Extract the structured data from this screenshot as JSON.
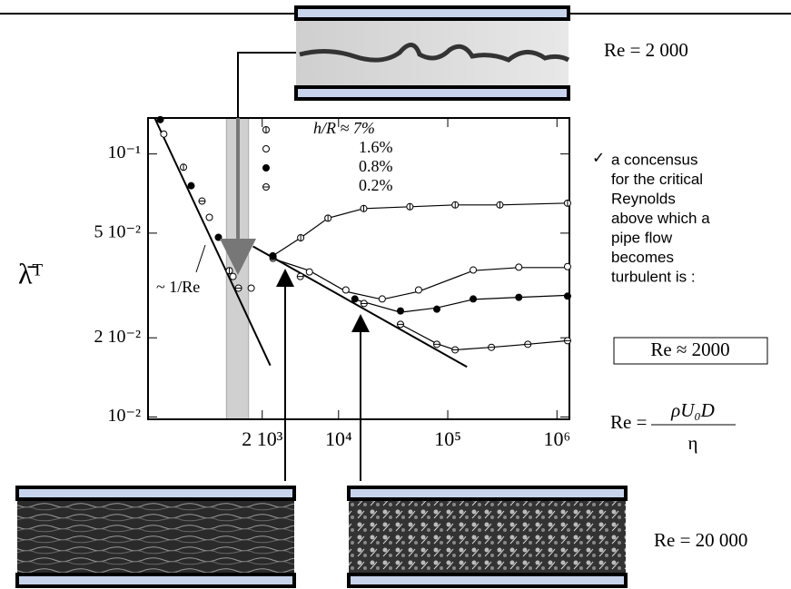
{
  "chart_data": {
    "type": "scatter",
    "y_label": "λ̄ᵀ",
    "xscale": "log",
    "yscale": "log",
    "xlim": [
      180,
      1300000
    ],
    "ylim": [
      0.0098,
      0.137
    ],
    "xticks": [
      {
        "value": 2000,
        "label": "2 10³"
      },
      {
        "value": 10000,
        "label": "10⁴"
      },
      {
        "value": 100000,
        "label": "10⁵"
      },
      {
        "value": 1000000,
        "label": "10⁶"
      }
    ],
    "yticks": [
      {
        "value": 0.1,
        "label": "10⁻¹"
      },
      {
        "value": 0.05,
        "label": "5 10⁻²"
      },
      {
        "value": 0.02,
        "label": "2 10⁻²"
      },
      {
        "value": 0.01,
        "label": "10⁻²"
      }
    ],
    "highlight_band": [
      940,
      1500
    ],
    "series": [
      {
        "name": "h/R ≈ 7%",
        "marker": "circle-cross",
        "color": "#000000",
        "x": [
          380,
          1000,
          2500,
          4500,
          8000,
          17000,
          45000,
          117000,
          300000,
          1250000
        ],
        "values": [
          0.089,
          0.036,
          0.041,
          0.048,
          0.057,
          0.062,
          0.063,
          0.064,
          0.064,
          0.065
        ],
        "fit": {
          "x": [
            2500,
            4500,
            8000,
            17000,
            45000,
            117000,
            300000,
            1250000
          ],
          "values": [
            0.041,
            0.048,
            0.057,
            0.062,
            0.063,
            0.064,
            0.064,
            0.065
          ]
        }
      },
      {
        "name": "1.6%",
        "marker": "open",
        "color": "#000000",
        "x": [
          251,
          656,
          1080,
          1585,
          2512,
          5410,
          11660,
          25100,
          54100,
          171000,
          447000,
          1250000
        ],
        "values": [
          0.119,
          0.0574,
          0.0342,
          0.0309,
          0.0401,
          0.0356,
          0.0304,
          0.0281,
          0.0304,
          0.0362,
          0.0371,
          0.0373
        ],
        "fit": {
          "x": [
            2500,
            5400,
            11700,
            25000,
            54000,
            171000,
            447000,
            1250000
          ],
          "values": [
            0.04,
            0.036,
            0.03,
            0.028,
            0.03,
            0.036,
            0.037,
            0.037
          ]
        }
      },
      {
        "name": "0.8%",
        "marker": "filled",
        "color": "#000000",
        "x": [
          233,
          447,
          794,
          2512,
          14100,
          36900,
          79400,
          171000,
          447000,
          1250000
        ],
        "values": [
          0.135,
          0.0757,
          0.0482,
          0.0407,
          0.0281,
          0.0253,
          0.0257,
          0.0281,
          0.0285,
          0.0288
        ],
        "fit": {
          "x": [
            14100,
            36900,
            79400,
            171000,
            447000,
            1250000
          ],
          "values": [
            0.028,
            0.025,
            0.026,
            0.028,
            0.0285,
            0.029
          ]
        }
      },
      {
        "name": "0.2%",
        "marker": "circle-dash",
        "color": "#000000",
        "x": [
          562,
          1212,
          4467,
          17100,
          36900,
          79400,
          116800,
          251000,
          541000,
          1250000
        ],
        "values": [
          0.0662,
          0.0309,
          0.0342,
          0.027,
          0.0225,
          0.0189,
          0.018,
          0.0184,
          0.0189,
          0.0195
        ],
        "fit": {
          "x": [
            36900,
            79400,
            116800,
            251000,
            541000,
            1250000
          ],
          "values": [
            0.0225,
            0.019,
            0.018,
            0.0184,
            0.0189,
            0.0195
          ]
        }
      }
    ],
    "lines": [
      {
        "name": "~ 1/Re",
        "x": [
          207,
          2371
        ],
        "values": [
          0.137,
          0.0157
        ]
      },
      {
        "x": [
          1648,
          150000
        ],
        "values": [
          0.0445,
          0.0155
        ]
      }
    ]
  },
  "annotations": {
    "re_top": "Re  = 2 000",
    "re_bottom": "Re  = 20 000",
    "check": "✓",
    "bullet_lines": [
      "a concensus",
      "for the critical",
      "Reynolds",
      "above which a",
      "pipe flow",
      "becomes",
      "turbulent is :"
    ],
    "boxed": "Re ≈ 2000",
    "formula": {
      "lhs": "Re =",
      "numerator": "ρU₀D",
      "denominator": "η"
    }
  }
}
